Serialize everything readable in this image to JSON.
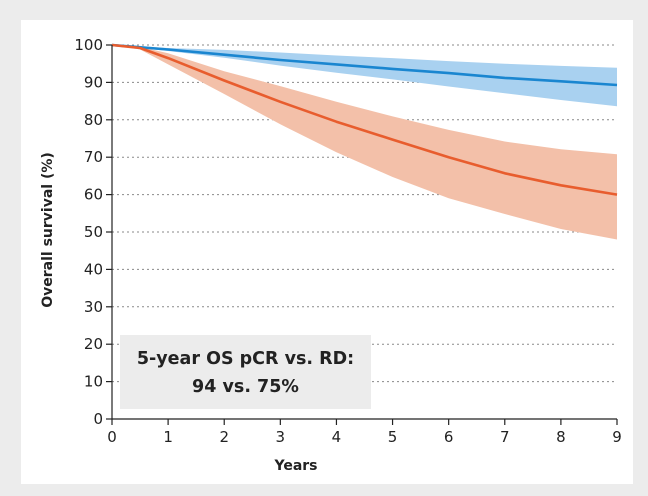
{
  "chart_data": {
    "type": "line",
    "xlabel": "Years",
    "ylabel": "Overall survival (%)",
    "xlim": [
      0,
      9
    ],
    "ylim": [
      0,
      100
    ],
    "x_ticks": [
      0,
      1,
      2,
      3,
      4,
      5,
      6,
      7,
      8,
      9
    ],
    "y_ticks": [
      0,
      10,
      20,
      30,
      40,
      50,
      60,
      70,
      80,
      90,
      100
    ],
    "grid": "horizontal-dotted",
    "series": [
      {
        "color": "#1a86d0",
        "band_color": "#a9d1f0",
        "x": [
          0,
          1,
          2,
          3,
          4,
          5,
          6,
          7,
          8,
          9
        ],
        "y": [
          100,
          98.8,
          97.4,
          96,
          94.8,
          93.6,
          92.5,
          91.2,
          90.3,
          89.3
        ],
        "upper": [
          100,
          99.2,
          98.7,
          98,
          97.2,
          96.5,
          95.7,
          95,
          94.4,
          93.9
        ],
        "lower": [
          100,
          98.4,
          96.6,
          94.5,
          92.6,
          90.8,
          88.9,
          87.1,
          85.3,
          83.6
        ]
      },
      {
        "color": "#e85d2e",
        "band_color": "#f3c0a9",
        "x": [
          0,
          0.5,
          1,
          2,
          3,
          4,
          5,
          6,
          7,
          8,
          9
        ],
        "y": [
          100,
          99.2,
          96.5,
          90.5,
          84.8,
          79.5,
          74.7,
          70,
          65.7,
          62.5,
          60
        ],
        "upper": [
          100,
          99.5,
          97.8,
          93,
          89,
          84.8,
          80.9,
          77.3,
          74.2,
          72.1,
          70.8
        ],
        "lower": [
          100,
          98.8,
          94.8,
          86.9,
          78.8,
          71.3,
          64.7,
          59,
          54.8,
          50.8,
          48
        ]
      }
    ],
    "annotation": {
      "lines": [
        "5-year OS pCR vs. RD:",
        "94 vs. 75%"
      ]
    }
  }
}
